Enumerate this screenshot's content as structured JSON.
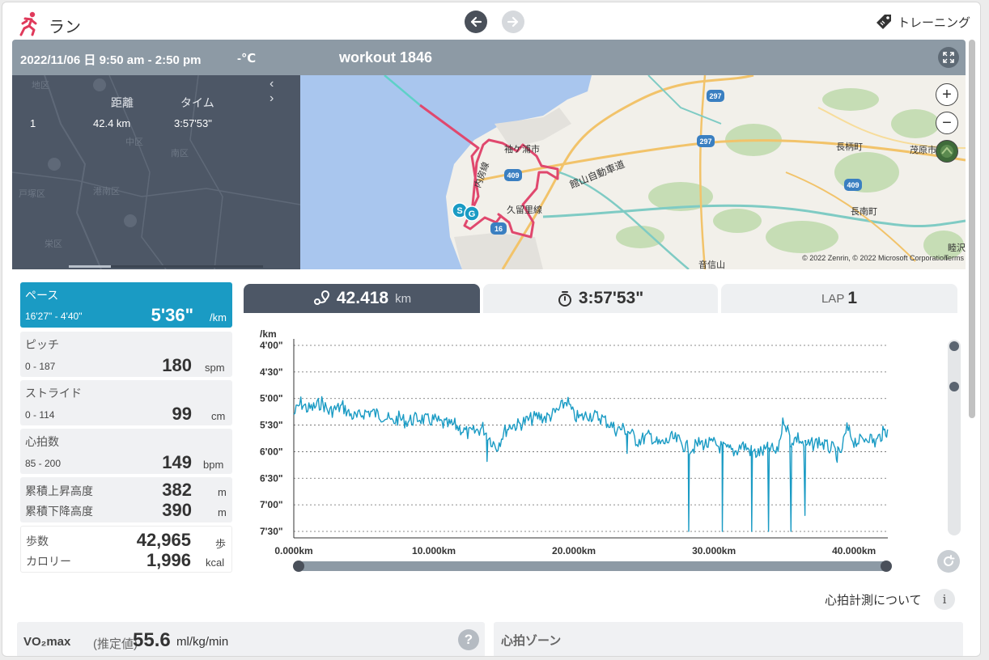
{
  "app": {
    "title": "ラン",
    "training_label": "トレーニング"
  },
  "workout": {
    "date": "2022/11/06 日 9:50 am - 2:50 pm",
    "temperature": "-℃",
    "name": "workout 1846"
  },
  "lap_table": {
    "headers": [
      "距離",
      "タイム"
    ],
    "rows": [
      {
        "lap": "1",
        "distance": "42.4 km",
        "time": "3:57'53\""
      }
    ]
  },
  "map": {
    "credit": "© 2022 Zenrin, © 2022 Microsoft Corporation",
    "terms": "Terms",
    "place_labels": [
      "袖ケ浦市",
      "館山自動車道",
      "内房線",
      "久留里線",
      "長柄町",
      "茂原市",
      "長南町",
      "睦沢町",
      "音信山"
    ],
    "ghost_labels": [
      "地区",
      "中区",
      "港南区",
      "戸塚区",
      "栄区",
      "南区"
    ],
    "route_shields": [
      "409",
      "16",
      "297",
      "409",
      "297"
    ],
    "markers": [
      "S",
      "G"
    ]
  },
  "metrics": [
    {
      "label": "ペース",
      "range": "16'27\" - 4'40\"",
      "value": "5'36\"",
      "unit": "/km"
    },
    {
      "label": "ピッチ",
      "range": "0 - 187",
      "value": "180",
      "unit": "spm"
    },
    {
      "label": "ストライド",
      "range": "0 - 114",
      "value": "99",
      "unit": "cm"
    },
    {
      "label": "心拍数",
      "range": "85 - 200",
      "value": "149",
      "unit": "bpm"
    }
  ],
  "elevation": {
    "ascent_label": "累積上昇高度",
    "ascent_value": "382",
    "descent_label": "累積下降高度",
    "descent_value": "390",
    "unit": "m"
  },
  "steps": {
    "steps_label": "歩数",
    "steps_value": "42,965",
    "steps_unit": "歩",
    "calorie_label": "カロリー",
    "calorie_value": "1,996",
    "calorie_unit": "kcal"
  },
  "tabs": {
    "distance": {
      "value": "42.418",
      "unit": "km"
    },
    "time": {
      "value": "3:57'53\""
    },
    "lap": {
      "label": "LAP",
      "value": "1"
    }
  },
  "chart_data": {
    "type": "line",
    "ylabel": "/km",
    "y_ticks": [
      "4'00\"",
      "4'30\"",
      "5'00\"",
      "5'30\"",
      "6'00\"",
      "6'30\"",
      "7'00\"",
      "7'30\""
    ],
    "x_ticks": [
      "0.000km",
      "10.000km",
      "20.000km",
      "30.000km",
      "40.000km"
    ],
    "xlim": [
      0,
      42.418
    ],
    "ylim_seconds_per_km": [
      240,
      450
    ],
    "y_inverted": true,
    "grid": true,
    "line_color": "#1a9bc4",
    "series": [
      {
        "x": [
          0,
          0.5,
          1,
          1.5,
          2,
          2.5,
          3,
          3.5,
          4,
          4.5,
          5,
          5.5,
          6,
          6.5,
          7,
          7.5,
          8,
          8.5,
          9,
          9.5,
          10,
          10.5,
          11,
          11.5,
          12,
          12.5,
          13,
          13.5,
          14,
          14.5,
          15,
          15.5,
          16,
          16.5,
          17,
          17.5,
          18,
          18.5,
          19,
          19.5,
          20,
          20.5,
          21,
          21.5,
          22,
          22.5,
          23,
          23.5,
          24,
          24.5,
          25,
          25.5,
          26,
          26.5,
          27,
          27.5,
          28,
          28.5,
          29,
          29.5,
          30,
          30.5,
          31,
          31.5,
          32,
          32.5,
          33,
          33.5,
          34,
          34.5,
          35,
          35.5,
          36,
          36.5,
          37,
          37.5,
          38,
          38.5,
          39,
          39.5,
          40,
          40.5,
          41,
          41.5,
          42,
          42.4
        ],
        "y": [
          318,
          305,
          312,
          310,
          304,
          315,
          312,
          309,
          318,
          322,
          316,
          315,
          318,
          320,
          327,
          322,
          326,
          324,
          322,
          325,
          324,
          328,
          330,
          330,
          335,
          340,
          337,
          333,
          345,
          355,
          338,
          330,
          330,
          326,
          323,
          320,
          322,
          318,
          312,
          302,
          320,
          322,
          318,
          320,
          322,
          328,
          335,
          334,
          338,
          348,
          345,
          342,
          352,
          350,
          345,
          348,
          355,
          356,
          350,
          352,
          351,
          355,
          358,
          360,
          352,
          358,
          362,
          360,
          356,
          362,
          322,
          348,
          344,
          354,
          352,
          348,
          354,
          357,
          365,
          334,
          348,
          348,
          342,
          350,
          340,
          335
        ]
      }
    ],
    "dips_x_km": [
      13.8,
      23.8,
      28.2,
      30.6,
      32.7,
      33.9,
      35.5,
      36.5,
      38.8
    ],
    "dips_y_seconds": [
      371,
      362,
      450,
      450,
      450,
      450,
      450,
      432,
      372
    ]
  },
  "footer": {
    "hr_note": "心拍計測について",
    "vo2_label": "VO₂max",
    "vo2_est": "(推定値)",
    "vo2_value": "55.6",
    "vo2_unit": "ml/kg/min",
    "hr_zone_title": "心拍ゾーン"
  }
}
